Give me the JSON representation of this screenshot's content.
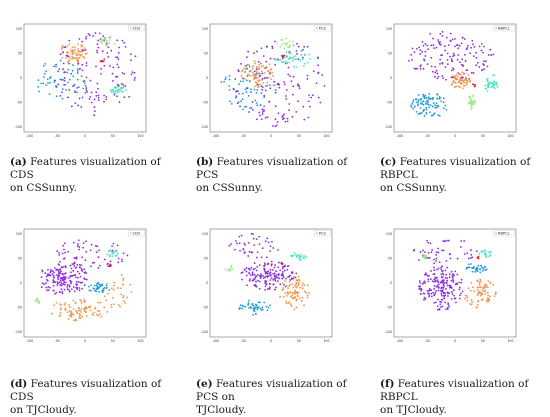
{
  "colors": {
    "purple": "#8b2be2",
    "orange": "#f4924a",
    "blue": "#1f9ad6",
    "cyan": "#4fe3c2",
    "green": "#9fe88a",
    "red": "#e8141c"
  },
  "chart_data": [
    {
      "id": "a",
      "type": "scatter",
      "legend": "CDS",
      "x_ticks": [
        "-100",
        "-50",
        "0",
        "50",
        "100"
      ],
      "y_ticks": [
        "100",
        "50",
        "0",
        "-50",
        "-100"
      ],
      "xlim": [
        -110,
        110
      ],
      "ylim": [
        -110,
        110
      ],
      "grid": false,
      "legend_position": "top-right",
      "caption_label": "(a)",
      "caption_text": "Features visualization of CDS",
      "caption_line2": "on CSSunny.",
      "clusters": [
        {
          "color": "orange",
          "cx": -22,
          "cy": 50,
          "rx": 28,
          "ry": 20,
          "n": 70
        },
        {
          "color": "blue",
          "cx": -45,
          "cy": -5,
          "rx": 45,
          "ry": 40,
          "n": 55,
          "sparse": true
        },
        {
          "color": "purple",
          "cx": 20,
          "cy": 10,
          "rx": 80,
          "ry": 85,
          "n": 140,
          "sparse": true
        },
        {
          "color": "cyan",
          "cx": 60,
          "cy": -25,
          "rx": 15,
          "ry": 10,
          "n": 30
        },
        {
          "color": "green",
          "cx": 40,
          "cy": 72,
          "rx": 14,
          "ry": 12,
          "n": 22
        },
        {
          "color": "red",
          "cx": 32,
          "cy": 35,
          "rx": 3,
          "ry": 3,
          "n": 5
        }
      ]
    },
    {
      "id": "b",
      "type": "scatter",
      "legend": "PCS",
      "x_ticks": [
        "-100",
        "-50",
        "0",
        "50",
        "100"
      ],
      "y_ticks": [
        "100",
        "50",
        "0",
        "-50",
        "-100"
      ],
      "xlim": [
        -110,
        110
      ],
      "ylim": [
        -110,
        110
      ],
      "grid": false,
      "legend_position": "top-right",
      "caption_label": "(b)",
      "caption_text": "Features visualization of PCS",
      "caption_line2": "on CSSunny.",
      "clusters": [
        {
          "color": "orange",
          "cx": -25,
          "cy": 10,
          "rx": 30,
          "ry": 28,
          "n": 75
        },
        {
          "color": "blue",
          "cx": -40,
          "cy": -20,
          "rx": 50,
          "ry": 45,
          "n": 60,
          "sparse": true
        },
        {
          "color": "purple",
          "cx": 15,
          "cy": -10,
          "rx": 85,
          "ry": 90,
          "n": 140,
          "sparse": true
        },
        {
          "color": "cyan",
          "cx": 40,
          "cy": 40,
          "rx": 35,
          "ry": 18,
          "n": 45
        },
        {
          "color": "green",
          "cx": 30,
          "cy": 70,
          "rx": 20,
          "ry": 10,
          "n": 20
        },
        {
          "color": "red",
          "cx": 22,
          "cy": 45,
          "rx": 3,
          "ry": 3,
          "n": 5
        }
      ]
    },
    {
      "id": "c",
      "type": "scatter",
      "legend": "RBPCL",
      "x_ticks": [
        "-100",
        "-50",
        "0",
        "50",
        "100"
      ],
      "y_ticks": [
        "100",
        "50",
        "0",
        "-50",
        "-100"
      ],
      "xlim": [
        -110,
        110
      ],
      "ylim": [
        -110,
        110
      ],
      "grid": false,
      "legend_position": "top-right",
      "caption_label": "(c)",
      "caption_text": "Features visualization of RBPCL",
      "caption_line2": "on CSSunny.",
      "clusters": [
        {
          "color": "purple",
          "cx": -5,
          "cy": 45,
          "rx": 80,
          "ry": 50,
          "n": 150,
          "sparse": true
        },
        {
          "color": "blue",
          "cx": -45,
          "cy": -55,
          "rx": 35,
          "ry": 25,
          "n": 90
        },
        {
          "color": "orange",
          "cx": 10,
          "cy": -5,
          "rx": 18,
          "ry": 18,
          "n": 60
        },
        {
          "color": "cyan",
          "cx": 65,
          "cy": -10,
          "rx": 12,
          "ry": 20,
          "n": 40
        },
        {
          "color": "green",
          "cx": 30,
          "cy": -50,
          "rx": 8,
          "ry": 15,
          "n": 30
        },
        {
          "color": "red",
          "cx": 35,
          "cy": -15,
          "rx": 3,
          "ry": 3,
          "n": 5
        }
      ]
    },
    {
      "id": "d",
      "type": "scatter",
      "legend": "CDS",
      "x_ticks": [
        "-100",
        "-50",
        "0",
        "50",
        "100"
      ],
      "y_ticks": [
        "100",
        "50",
        "0",
        "-50",
        "-100"
      ],
      "xlim": [
        -110,
        110
      ],
      "ylim": [
        -110,
        110
      ],
      "grid": false,
      "legend_position": "top-right",
      "caption_label": "(d)",
      "caption_text": "Features visualization of CDS",
      "caption_line2": "on TJCloudy.",
      "clusters": [
        {
          "color": "purple",
          "cx": -40,
          "cy": 10,
          "rx": 45,
          "ry": 35,
          "n": 170
        },
        {
          "color": "purple",
          "cx": 10,
          "cy": 60,
          "rx": 70,
          "ry": 30,
          "n": 60,
          "sparse": true
        },
        {
          "color": "orange",
          "cx": -10,
          "cy": -55,
          "rx": 55,
          "ry": 22,
          "n": 90
        },
        {
          "color": "orange",
          "cx": 60,
          "cy": -20,
          "rx": 25,
          "ry": 40,
          "n": 30,
          "sparse": true
        },
        {
          "color": "blue",
          "cx": 25,
          "cy": -10,
          "rx": 20,
          "ry": 10,
          "n": 35
        },
        {
          "color": "cyan",
          "cx": 50,
          "cy": 60,
          "rx": 10,
          "ry": 8,
          "n": 20
        },
        {
          "color": "green",
          "cx": -85,
          "cy": -35,
          "rx": 6,
          "ry": 6,
          "n": 10
        },
        {
          "color": "red",
          "cx": 45,
          "cy": 35,
          "rx": 2,
          "ry": 2,
          "n": 4
        }
      ]
    },
    {
      "id": "e",
      "type": "scatter",
      "legend": "PCS",
      "x_ticks": [
        "-100",
        "-50",
        "0",
        "50",
        "100"
      ],
      "y_ticks": [
        "100",
        "50",
        "0",
        "-50",
        "-100"
      ],
      "xlim": [
        -110,
        110
      ],
      "ylim": [
        -110,
        110
      ],
      "grid": false,
      "legend_position": "top-right",
      "caption_label": "(e)",
      "caption_text": "Features visualization of PCS on",
      "caption_line2": "TJCloudy.",
      "clusters": [
        {
          "color": "purple",
          "cx": -5,
          "cy": 15,
          "rx": 50,
          "ry": 30,
          "n": 170
        },
        {
          "color": "purple",
          "cx": -30,
          "cy": 75,
          "rx": 50,
          "ry": 25,
          "n": 40,
          "sparse": true
        },
        {
          "color": "orange",
          "cx": 45,
          "cy": -20,
          "rx": 30,
          "ry": 35,
          "n": 80
        },
        {
          "color": "blue",
          "cx": -30,
          "cy": -50,
          "rx": 30,
          "ry": 15,
          "n": 45
        },
        {
          "color": "cyan",
          "cx": 50,
          "cy": 55,
          "rx": 15,
          "ry": 8,
          "n": 25
        },
        {
          "color": "green",
          "cx": -75,
          "cy": 30,
          "rx": 8,
          "ry": 6,
          "n": 10
        },
        {
          "color": "red",
          "cx": 20,
          "cy": 40,
          "rx": 2,
          "ry": 2,
          "n": 4
        }
      ]
    },
    {
      "id": "f",
      "type": "scatter",
      "legend": "RBPCL",
      "x_ticks": [
        "-100",
        "-50",
        "0",
        "50",
        "100"
      ],
      "y_ticks": [
        "100",
        "50",
        "0",
        "-50",
        "-100"
      ],
      "xlim": [
        -110,
        110
      ],
      "ylim": [
        -110,
        110
      ],
      "grid": false,
      "legend_position": "top-right",
      "caption_label": "(f)",
      "caption_text": "Features visualization of RBPCL",
      "caption_line2": "on TJCloudy.",
      "clusters": [
        {
          "color": "purple",
          "cx": -25,
          "cy": -10,
          "rx": 40,
          "ry": 45,
          "n": 190
        },
        {
          "color": "purple",
          "cx": -20,
          "cy": 65,
          "rx": 60,
          "ry": 25,
          "n": 50,
          "sparse": true
        },
        {
          "color": "orange",
          "cx": 45,
          "cy": -20,
          "rx": 30,
          "ry": 35,
          "n": 80
        },
        {
          "color": "blue",
          "cx": 40,
          "cy": 30,
          "rx": 20,
          "ry": 10,
          "n": 35
        },
        {
          "color": "cyan",
          "cx": 55,
          "cy": 60,
          "rx": 12,
          "ry": 8,
          "n": 20
        },
        {
          "color": "green",
          "cx": -55,
          "cy": 55,
          "rx": 6,
          "ry": 6,
          "n": 10
        },
        {
          "color": "red",
          "cx": 40,
          "cy": 52,
          "rx": 2,
          "ry": 2,
          "n": 4
        }
      ]
    }
  ]
}
